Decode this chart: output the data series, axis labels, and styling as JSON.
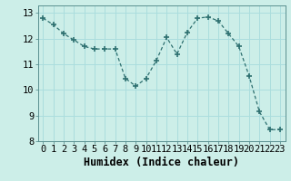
{
  "x": [
    0,
    1,
    2,
    3,
    4,
    5,
    6,
    7,
    8,
    9,
    10,
    11,
    12,
    13,
    14,
    15,
    16,
    17,
    18,
    19,
    20,
    21,
    22,
    23
  ],
  "y": [
    12.8,
    12.55,
    12.2,
    11.95,
    11.7,
    11.6,
    11.6,
    11.6,
    10.45,
    10.15,
    10.45,
    11.15,
    12.05,
    11.4,
    12.25,
    12.8,
    12.85,
    12.7,
    12.2,
    11.7,
    10.55,
    9.15,
    8.45,
    8.45
  ],
  "line_color": "#2e7070",
  "marker": "+",
  "marker_size": 5,
  "background_color": "#cceee8",
  "grid_color": "#aadddd",
  "xlabel": "Humidex (Indice chaleur)",
  "ylim": [
    8,
    13.3
  ],
  "yticks": [
    8,
    9,
    10,
    11,
    12,
    13
  ],
  "xticks": [
    0,
    1,
    2,
    3,
    4,
    5,
    6,
    7,
    8,
    9,
    10,
    11,
    12,
    13,
    14,
    15,
    16,
    17,
    18,
    19,
    20,
    21,
    22,
    23
  ],
  "tick_fontsize": 7.5,
  "xlabel_fontsize": 8.5
}
